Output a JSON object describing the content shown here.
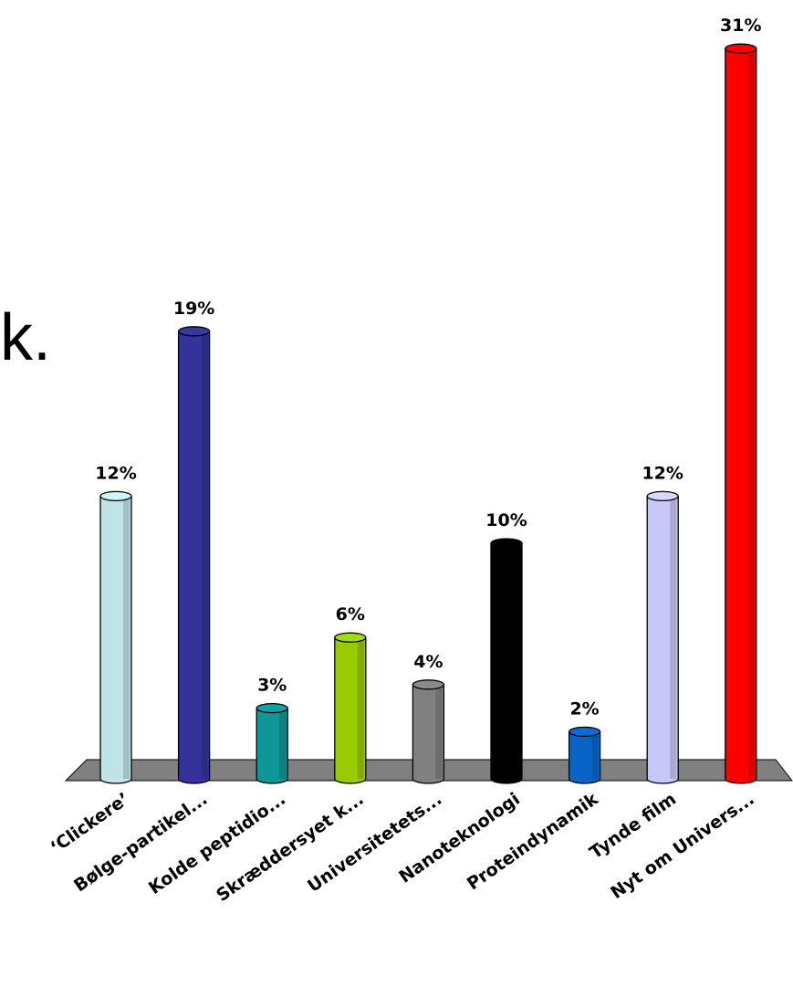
{
  "background_text": "k.",
  "chart_data": {
    "type": "bar",
    "style": "3d-cylinder",
    "categories": [
      "‘Clickere’",
      "Bølge-partikel...",
      "Kolde peptidio...",
      "Skræddersyet k...",
      "Universitetets...",
      "Nanoteknologi",
      "Proteindynamik",
      "Tynde film",
      "Nyt om Univers..."
    ],
    "values": [
      12,
      19,
      3,
      6,
      4,
      10,
      2,
      12,
      31
    ],
    "value_labels": [
      "12%",
      "19%",
      "3%",
      "6%",
      "4%",
      "10%",
      "2%",
      "12%",
      "31%"
    ],
    "unit": "%",
    "ylim": [
      0,
      31
    ],
    "colors": [
      "#bfe3e6",
      "#333399",
      "#0f9696",
      "#99cc00",
      "#808080",
      "#000000",
      "#0a64c8",
      "#c8c8f8",
      "#ff0000"
    ],
    "floor_color": "#808080",
    "grid": false,
    "legend": "none"
  }
}
